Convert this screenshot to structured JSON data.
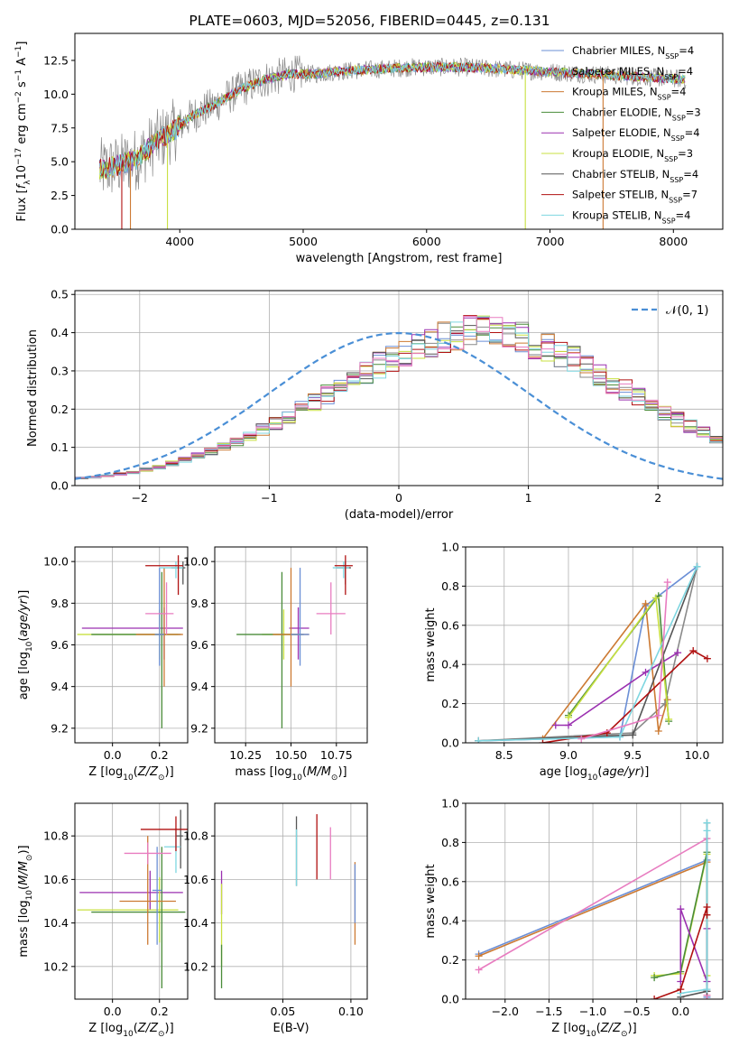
{
  "title": "PLATE=0603, MJD=52056, FIBERID=0445, z=0.131",
  "colors": {
    "Chabrier MILES": "#6b8fd6",
    "Salpeter MILES": "#8a8a8a",
    "Kroupa MILES": "#cc7a33",
    "Chabrier ELODIE": "#4a8c3a",
    "Salpeter ELODIE": "#9b30b0",
    "Kroupa ELODIE": "#c8e040",
    "Chabrier STELIB": "#555555",
    "Salpeter STELIB": "#b01010",
    "Kroupa STELIB": "#7ed6e0",
    "pink": "#e87cc0",
    "normal_fit": "#4a8fd6"
  },
  "chart_data": [
    {
      "id": "spectrum",
      "type": "line",
      "xlabel": "wavelength [Angstrom, rest frame]",
      "ylabel": "Flux [f_λ 10^-17 erg cm^-2 s^-1 A^-1]",
      "xlim": [
        3150,
        8400
      ],
      "ylim": [
        0,
        14.5
      ],
      "xticks": [
        4000,
        5000,
        6000,
        7000,
        8000
      ],
      "yticks": [
        "0.0",
        "2.5",
        "5.0",
        "7.5",
        "10.0",
        "12.5"
      ],
      "data_x_range": [
        3350,
        8100
      ],
      "continuum": {
        "x": [
          3350,
          3500,
          3650,
          3800,
          3950,
          4100,
          4300,
          4500,
          4700,
          4900,
          5100,
          5300,
          5500,
          5700,
          5900,
          6100,
          6300,
          6500,
          6700,
          6900,
          7100,
          7300,
          7500,
          7700,
          7900,
          8100
        ],
        "y": [
          4.4,
          4.7,
          5.2,
          6.4,
          7.3,
          8.4,
          9.3,
          10.4,
          11.1,
          11.5,
          11.5,
          11.7,
          11.8,
          11.9,
          12.0,
          12.0,
          12.0,
          11.9,
          11.8,
          11.7,
          11.6,
          11.5,
          11.4,
          11.3,
          11.2,
          11.1
        ]
      },
      "legend": [
        {
          "label": "Chabrier MILES",
          "N_SSP": "4"
        },
        {
          "label": "Salpeter MILES",
          "N_SSP": "4"
        },
        {
          "label": "Kroupa MILES",
          "N_SSP": "4"
        },
        {
          "label": "Chabrier ELODIE",
          "N_SSP": "3"
        },
        {
          "label": "Salpeter ELODIE",
          "N_SSP": "4"
        },
        {
          "label": "Kroupa ELODIE",
          "N_SSP": "3"
        },
        {
          "label": "Chabrier STELIB",
          "N_SSP": "4"
        },
        {
          "label": "Salpeter STELIB",
          "N_SSP": "7"
        },
        {
          "label": "Kroupa STELIB",
          "N_SSP": "4"
        }
      ],
      "legend_position": "upper-right",
      "nssp_prefix": "N",
      "nssp_sub": "SSP"
    },
    {
      "id": "residuals",
      "type": "histogram",
      "xlabel": "(data-model)/error",
      "ylabel": "Normed distribution",
      "xlim": [
        -2.5,
        2.5
      ],
      "ylim": [
        0,
        0.51
      ],
      "xticks": [
        "−2",
        "−1",
        "0",
        "1",
        "2"
      ],
      "yticks": [
        "0.0",
        "0.1",
        "0.2",
        "0.3",
        "0.4",
        "0.5"
      ],
      "grid": true,
      "bin_width": 0.1,
      "bin_start": -2.5,
      "mean_profile": [
        0.02,
        0.022,
        0.026,
        0.03,
        0.035,
        0.042,
        0.049,
        0.058,
        0.067,
        0.078,
        0.09,
        0.102,
        0.116,
        0.131,
        0.147,
        0.164,
        0.182,
        0.2,
        0.218,
        0.238,
        0.258,
        0.276,
        0.295,
        0.315,
        0.332,
        0.348,
        0.363,
        0.376,
        0.388,
        0.396,
        0.401,
        0.403,
        0.399,
        0.393,
        0.385,
        0.372,
        0.358,
        0.344,
        0.328,
        0.31,
        0.29,
        0.27,
        0.25,
        0.232,
        0.212,
        0.192,
        0.173,
        0.155,
        0.138,
        0.121
      ],
      "fit_label": "𝒩(0, 1)",
      "legend_position": "upper-right"
    },
    {
      "id": "age-vs-Z",
      "type": "errorbar",
      "xlabel": "Z [log10(Z/Z☉)]",
      "ylabel": "age [log10(age/yr)]",
      "xlim": [
        -0.16,
        0.32
      ],
      "ylim": [
        9.13,
        10.07
      ],
      "xticks": [
        "0.0",
        "0.2"
      ],
      "yticks": [
        "9.2",
        "9.4",
        "9.6",
        "9.8",
        "10.0"
      ],
      "grid": true,
      "points": [
        {
          "x": 0.22,
          "y": 9.68,
          "xerr": [
            0.35,
            0.08
          ],
          "yerr": [
            0.15,
            0.1
          ],
          "c": "Salpeter ELODIE"
        },
        {
          "x": 0.2,
          "y": 9.65,
          "xerr": [
            0.35,
            0.08
          ],
          "yerr": [
            0.12,
            0.12
          ],
          "c": "Kroupa ELODIE"
        },
        {
          "x": 0.21,
          "y": 9.65,
          "xerr": [
            0.3,
            0.08
          ],
          "yerr": [
            0.45,
            0.3
          ],
          "c": "Chabrier ELODIE"
        },
        {
          "x": 0.22,
          "y": 9.65,
          "xerr": [
            0.12,
            0.08
          ],
          "yerr": [
            0.25,
            0.32
          ],
          "c": "Kroupa MILES"
        },
        {
          "x": 0.2,
          "y": 9.65,
          "xerr": [
            0.02,
            0.02
          ],
          "yerr": [
            0.15,
            0.32
          ],
          "c": "Chabrier MILES"
        },
        {
          "x": 0.23,
          "y": 9.75,
          "xerr": [
            0.09,
            0.03
          ],
          "yerr": [
            0.1,
            0.15
          ],
          "c": "pink"
        },
        {
          "x": 0.3,
          "y": 9.97,
          "xerr": [
            0.05,
            0.01
          ],
          "yerr": [
            0.08,
            0.03
          ],
          "c": "Chabrier STELIB"
        },
        {
          "x": 0.27,
          "y": 9.97,
          "xerr": [
            0.07,
            0.03
          ],
          "yerr": [
            0.05,
            0.03
          ],
          "c": "Kroupa STELIB"
        },
        {
          "x": 0.28,
          "y": 9.98,
          "xerr": [
            0.14,
            0.02
          ],
          "yerr": [
            0.14,
            0.05
          ],
          "c": "Salpeter STELIB"
        }
      ]
    },
    {
      "id": "age-vs-mass",
      "type": "errorbar",
      "xlabel": "mass [log10(M/M☉)]",
      "ylabel": "",
      "xlim": [
        10.08,
        10.92
      ],
      "ylim": [
        9.13,
        10.07
      ],
      "xticks": [
        "10.25",
        "10.50",
        "10.75"
      ],
      "yticks": [
        "9.2",
        "9.4",
        "9.6",
        "9.8",
        "10.0"
      ],
      "grid": true,
      "points": [
        {
          "x": 10.54,
          "y": 9.68,
          "xerr": [
            0.05,
            0.06
          ],
          "yerr": [
            0.15,
            0.1
          ],
          "c": "Salpeter ELODIE"
        },
        {
          "x": 10.46,
          "y": 9.65,
          "xerr": [
            0.12,
            0.08
          ],
          "yerr": [
            0.12,
            0.12
          ],
          "c": "Kroupa ELODIE"
        },
        {
          "x": 10.45,
          "y": 9.65,
          "xerr": [
            0.25,
            0.12
          ],
          "yerr": [
            0.45,
            0.3
          ],
          "c": "Chabrier ELODIE"
        },
        {
          "x": 10.5,
          "y": 9.65,
          "xerr": [
            0.1,
            0.1
          ],
          "yerr": [
            0.25,
            0.32
          ],
          "c": "Kroupa MILES"
        },
        {
          "x": 10.55,
          "y": 9.65,
          "xerr": [
            0.05,
            0.05
          ],
          "yerr": [
            0.15,
            0.32
          ],
          "c": "Chabrier MILES"
        },
        {
          "x": 10.72,
          "y": 9.75,
          "xerr": [
            0.08,
            0.08
          ],
          "yerr": [
            0.1,
            0.15
          ],
          "c": "pink"
        },
        {
          "x": 10.8,
          "y": 9.97,
          "xerr": [
            0.05,
            0.03
          ],
          "yerr": [
            0.08,
            0.03
          ],
          "c": "Chabrier STELIB"
        },
        {
          "x": 10.79,
          "y": 9.97,
          "xerr": [
            0.06,
            0.03
          ],
          "yerr": [
            0.05,
            0.03
          ],
          "c": "Kroupa STELIB"
        },
        {
          "x": 10.8,
          "y": 9.98,
          "xerr": [
            0.06,
            0.04
          ],
          "yerr": [
            0.14,
            0.05
          ],
          "c": "Salpeter STELIB"
        }
      ]
    },
    {
      "id": "weight-vs-age",
      "type": "line",
      "xlabel": "age [log10(age/yr)]",
      "ylabel": "mass weight",
      "xlim": [
        8.2,
        10.2
      ],
      "ylim": [
        0,
        1
      ],
      "xticks": [
        "8.5",
        "9.0",
        "9.5",
        "10.0"
      ],
      "yticks": [
        "0.0",
        "0.2",
        "0.4",
        "0.6",
        "0.8",
        "1.0"
      ],
      "grid": true,
      "series": [
        {
          "c": "Chabrier MILES",
          "x": [
            8.3,
            9.4,
            9.6,
            10.0
          ],
          "y": [
            0.01,
            0.03,
            0.7,
            0.9
          ]
        },
        {
          "c": "Salpeter MILES",
          "x": [
            8.3,
            9.5,
            9.75,
            10.0
          ],
          "y": [
            0.01,
            0.05,
            0.2,
            0.9
          ]
        },
        {
          "c": "Kroupa MILES",
          "x": [
            8.8,
            9.6,
            9.7,
            9.77
          ],
          "y": [
            0.02,
            0.71,
            0.06,
            0.22
          ]
        },
        {
          "c": "Chabrier ELODIE",
          "x": [
            9.0,
            9.7,
            9.78
          ],
          "y": [
            0.14,
            0.75,
            0.11
          ]
        },
        {
          "c": "Salpeter ELODIE",
          "x": [
            8.9,
            9.0,
            9.6,
            9.85
          ],
          "y": [
            0.09,
            0.09,
            0.36,
            0.46
          ]
        },
        {
          "c": "Kroupa ELODIE",
          "x": [
            9.0,
            9.68,
            9.78
          ],
          "y": [
            0.13,
            0.74,
            0.12
          ]
        },
        {
          "c": "Chabrier STELIB",
          "x": [
            8.3,
            9.5,
            10.0
          ],
          "y": [
            0.01,
            0.04,
            0.9
          ]
        },
        {
          "c": "Salpeter STELIB",
          "x": [
            8.8,
            9.3,
            9.97,
            10.08
          ],
          "y": [
            0.0,
            0.05,
            0.47,
            0.43
          ]
        },
        {
          "c": "Kroupa STELIB",
          "x": [
            8.3,
            9.4,
            10.0
          ],
          "y": [
            0.01,
            0.03,
            0.9
          ]
        },
        {
          "c": "pink",
          "x": [
            9.1,
            9.7,
            9.77
          ],
          "y": [
            0.02,
            0.14,
            0.82
          ]
        }
      ]
    },
    {
      "id": "mass-vs-Z",
      "type": "errorbar",
      "xlabel": "Z [log10(Z/Z☉)]",
      "ylabel": "mass [log10(M/M☉)]",
      "xlim": [
        -0.16,
        0.32
      ],
      "ylim": [
        10.05,
        10.95
      ],
      "xticks": [
        "0.0",
        "0.2"
      ],
      "yticks": [
        "10.2",
        "10.4",
        "10.6",
        "10.8"
      ],
      "grid": true,
      "points": [
        {
          "x": 0.16,
          "y": 10.54,
          "xerr": [
            0.3,
            0.14
          ],
          "yerr": [
            0.08,
            0.1
          ],
          "c": "Salpeter ELODIE"
        },
        {
          "x": 0.2,
          "y": 10.46,
          "xerr": [
            0.35,
            0.08
          ],
          "yerr": [
            0.15,
            0.15
          ],
          "c": "Kroupa ELODIE"
        },
        {
          "x": 0.21,
          "y": 10.45,
          "xerr": [
            0.3,
            0.1
          ],
          "yerr": [
            0.35,
            0.3
          ],
          "c": "Chabrier ELODIE"
        },
        {
          "x": 0.15,
          "y": 10.5,
          "xerr": [
            0.12,
            0.12
          ],
          "yerr": [
            0.2,
            0.3
          ],
          "c": "Kroupa MILES"
        },
        {
          "x": 0.19,
          "y": 10.55,
          "xerr": [
            0.02,
            0.02
          ],
          "yerr": [
            0.25,
            0.2
          ],
          "c": "Chabrier MILES"
        },
        {
          "x": 0.15,
          "y": 10.72,
          "xerr": [
            0.1,
            0.1
          ],
          "yerr": [
            0.05,
            0.05
          ],
          "c": "pink"
        },
        {
          "x": 0.29,
          "y": 10.8,
          "xerr": [
            0.02,
            0.01
          ],
          "yerr": [
            0.15,
            0.12
          ],
          "c": "Chabrier STELIB"
        },
        {
          "x": 0.27,
          "y": 10.75,
          "xerr": [
            0.05,
            0.02
          ],
          "yerr": [
            0.12,
            0.08
          ],
          "c": "Kroupa STELIB"
        },
        {
          "x": 0.27,
          "y": 10.83,
          "xerr": [
            0.15,
            0.05
          ],
          "yerr": [
            0.1,
            0.06
          ],
          "c": "Salpeter STELIB"
        }
      ]
    },
    {
      "id": "mass-vs-ebv",
      "type": "errorbar",
      "xlabel": "E(B-V)",
      "ylabel": "",
      "xlim": [
        0.0,
        0.112
      ],
      "ylim": [
        10.05,
        10.95
      ],
      "xticks": [
        "0.05",
        "0.10"
      ],
      "yticks": [
        "10.2",
        "10.4",
        "10.6",
        "10.8"
      ],
      "grid": true,
      "points": [
        {
          "x": 0.005,
          "y": 10.54,
          "xerr": [
            0,
            0
          ],
          "yerr": [
            0.1,
            0.1
          ],
          "c": "Salpeter ELODIE"
        },
        {
          "x": 0.005,
          "y": 10.4,
          "xerr": [
            0,
            0
          ],
          "yerr": [
            0.2,
            0.18
          ],
          "c": "Kroupa ELODIE"
        },
        {
          "x": 0.005,
          "y": 10.25,
          "xerr": [
            0,
            0
          ],
          "yerr": [
            0.15,
            0.05
          ],
          "c": "Chabrier ELODIE"
        },
        {
          "x": 0.06,
          "y": 10.75,
          "xerr": [
            0,
            0
          ],
          "yerr": [
            0.18,
            0.14
          ],
          "c": "Chabrier STELIB"
        },
        {
          "x": 0.06,
          "y": 10.73,
          "xerr": [
            0,
            0
          ],
          "yerr": [
            0.16,
            0.1
          ],
          "c": "Kroupa STELIB"
        },
        {
          "x": 0.075,
          "y": 10.75,
          "xerr": [
            0,
            0
          ],
          "yerr": [
            0.15,
            0.15
          ],
          "c": "Salpeter STELIB"
        },
        {
          "x": 0.085,
          "y": 10.72,
          "xerr": [
            0,
            0
          ],
          "yerr": [
            0.12,
            0.12
          ],
          "c": "pink"
        },
        {
          "x": 0.103,
          "y": 10.5,
          "xerr": [
            0,
            0
          ],
          "yerr": [
            0.2,
            0.18
          ],
          "c": "Kroupa MILES"
        },
        {
          "x": 0.103,
          "y": 10.55,
          "xerr": [
            0,
            0
          ],
          "yerr": [
            0.15,
            0.12
          ],
          "c": "Chabrier MILES"
        }
      ]
    },
    {
      "id": "weight-vs-Z",
      "type": "line",
      "xlabel": "Z [log10(Z/Z☉)]",
      "ylabel": "mass weight",
      "xlim": [
        -2.45,
        0.48
      ],
      "ylim": [
        0,
        1
      ],
      "xticks": [
        "−2.0",
        "−1.5",
        "−1.0",
        "−0.5",
        "0.0"
      ],
      "yticks": [
        "0.0",
        "0.2",
        "0.4",
        "0.6",
        "0.8",
        "1.0"
      ],
      "grid": true,
      "series": [
        {
          "c": "Chabrier MILES",
          "x": [
            -2.3,
            0.3,
            0.3
          ],
          "y": [
            0.23,
            0.71,
            0.01
          ]
        },
        {
          "c": "Kroupa MILES",
          "x": [
            -2.3,
            0.3,
            0.3
          ],
          "y": [
            0.22,
            0.7,
            0.02
          ]
        },
        {
          "c": "pink",
          "x": [
            -2.3,
            0.3,
            0.3
          ],
          "y": [
            0.15,
            0.82,
            0.02
          ]
        },
        {
          "c": "Kroupa ELODIE",
          "x": [
            -0.3,
            0.0,
            0.3,
            0.3
          ],
          "y": [
            0.12,
            0.13,
            0.74,
            0.12
          ]
        },
        {
          "c": "Chabrier ELODIE",
          "x": [
            -0.3,
            0.0,
            0.3
          ],
          "y": [
            0.11,
            0.14,
            0.75
          ]
        },
        {
          "c": "Salpeter ELODIE",
          "x": [
            0.0,
            0.0,
            0.3,
            0.3
          ],
          "y": [
            0.09,
            0.46,
            0.09,
            0.36
          ]
        },
        {
          "c": "Chabrier STELIB",
          "x": [
            0.0,
            0.3,
            0.3
          ],
          "y": [
            0.01,
            0.04,
            0.9
          ]
        },
        {
          "c": "Kroupa STELIB",
          "x": [
            0.0,
            0.3,
            0.3,
            0.3
          ],
          "y": [
            0.03,
            0.05,
            0.9,
            0.86
          ]
        },
        {
          "c": "Salpeter STELIB",
          "x": [
            -0.3,
            0.0,
            0.3,
            0.3
          ],
          "y": [
            0.0,
            0.05,
            0.47,
            0.43
          ]
        }
      ]
    }
  ]
}
